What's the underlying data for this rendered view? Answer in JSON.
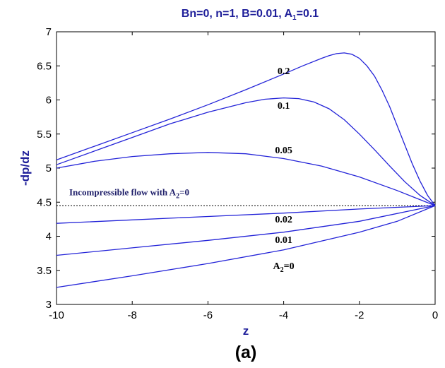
{
  "chart_data": {
    "type": "line",
    "title": "Bn=0, n=1, B=0.01, A",
    "title_sub": "1",
    "title_tail": "=0.1",
    "xlabel": "z",
    "ylabel": "-dp/dz",
    "panel_label": "(a)",
    "xlim": [
      -10,
      0
    ],
    "ylim": [
      3,
      7
    ],
    "xticks": [
      "-10",
      "-8",
      "-6",
      "-4",
      "-2",
      "0"
    ],
    "yticks": [
      "3",
      "3.5",
      "4",
      "4.5",
      "5",
      "5.5",
      "6",
      "6.5",
      "7"
    ],
    "grid": false,
    "line_color": "#2323d8",
    "series": [
      {
        "name": "0.2",
        "points": [
          [
            -10,
            5.12
          ],
          [
            -9,
            5.32
          ],
          [
            -8,
            5.52
          ],
          [
            -7,
            5.72
          ],
          [
            -6,
            5.93
          ],
          [
            -5,
            6.15
          ],
          [
            -4,
            6.38
          ],
          [
            -3.5,
            6.5
          ],
          [
            -3,
            6.61
          ],
          [
            -2.8,
            6.65
          ],
          [
            -2.6,
            6.68
          ],
          [
            -2.4,
            6.69
          ],
          [
            -2.2,
            6.67
          ],
          [
            -2,
            6.61
          ],
          [
            -1.8,
            6.5
          ],
          [
            -1.6,
            6.35
          ],
          [
            -1.4,
            6.14
          ],
          [
            -1.2,
            5.9
          ],
          [
            -1,
            5.62
          ],
          [
            -0.8,
            5.34
          ],
          [
            -0.6,
            5.06
          ],
          [
            -0.4,
            4.81
          ],
          [
            -0.2,
            4.6
          ],
          [
            0,
            4.45
          ]
        ]
      },
      {
        "name": "0.1",
        "points": [
          [
            -10,
            5.05
          ],
          [
            -9,
            5.25
          ],
          [
            -8,
            5.45
          ],
          [
            -7,
            5.65
          ],
          [
            -6,
            5.82
          ],
          [
            -5,
            5.96
          ],
          [
            -4.5,
            6.01
          ],
          [
            -4,
            6.03
          ],
          [
            -3.6,
            6.02
          ],
          [
            -3.2,
            5.97
          ],
          [
            -2.8,
            5.87
          ],
          [
            -2.4,
            5.71
          ],
          [
            -2,
            5.5
          ],
          [
            -1.6,
            5.27
          ],
          [
            -1.2,
            5.03
          ],
          [
            -0.8,
            4.8
          ],
          [
            -0.4,
            4.6
          ],
          [
            0,
            4.45
          ]
        ]
      },
      {
        "name": "0.05",
        "points": [
          [
            -10,
            5.0
          ],
          [
            -9,
            5.1
          ],
          [
            -8,
            5.17
          ],
          [
            -7,
            5.21
          ],
          [
            -6,
            5.23
          ],
          [
            -5,
            5.21
          ],
          [
            -4,
            5.14
          ],
          [
            -3,
            5.03
          ],
          [
            -2,
            4.87
          ],
          [
            -1,
            4.67
          ],
          [
            -0.5,
            4.56
          ],
          [
            0,
            4.45
          ]
        ]
      },
      {
        "name": "0.02",
        "points": [
          [
            -10,
            4.19
          ],
          [
            -8,
            4.24
          ],
          [
            -6,
            4.29
          ],
          [
            -4,
            4.34
          ],
          [
            -2,
            4.4
          ],
          [
            0,
            4.45
          ]
        ]
      },
      {
        "name": "0.01",
        "points": [
          [
            -10,
            3.72
          ],
          [
            -8,
            3.83
          ],
          [
            -6,
            3.94
          ],
          [
            -4,
            4.06
          ],
          [
            -2,
            4.22
          ],
          [
            0,
            4.45
          ]
        ]
      },
      {
        "name": "A2=0",
        "points": [
          [
            -10,
            3.25
          ],
          [
            -8,
            3.42
          ],
          [
            -6,
            3.6
          ],
          [
            -4,
            3.8
          ],
          [
            -2,
            4.06
          ],
          [
            -1,
            4.22
          ],
          [
            0,
            4.45
          ]
        ]
      }
    ],
    "labels": [
      {
        "text": "0.2",
        "x": -4.0,
        "y": 6.38
      },
      {
        "text": "0.1",
        "x": -4.0,
        "y": 5.87
      },
      {
        "text": "0.05",
        "x": -4.0,
        "y": 5.22
      },
      {
        "text": "0.02",
        "x": -4.0,
        "y": 4.2
      },
      {
        "text": "0.01",
        "x": -4.0,
        "y": 3.9
      },
      {
        "text": "A",
        "sub": "2",
        "tail": "=0",
        "x": -4.0,
        "y": 3.52
      }
    ],
    "reference_line": {
      "y": 4.45,
      "style": "dotted",
      "label": "Incompressible flow with A",
      "label_sub": "2",
      "label_tail": "=0",
      "label_x": -10.0,
      "label_y": 4.6
    }
  }
}
